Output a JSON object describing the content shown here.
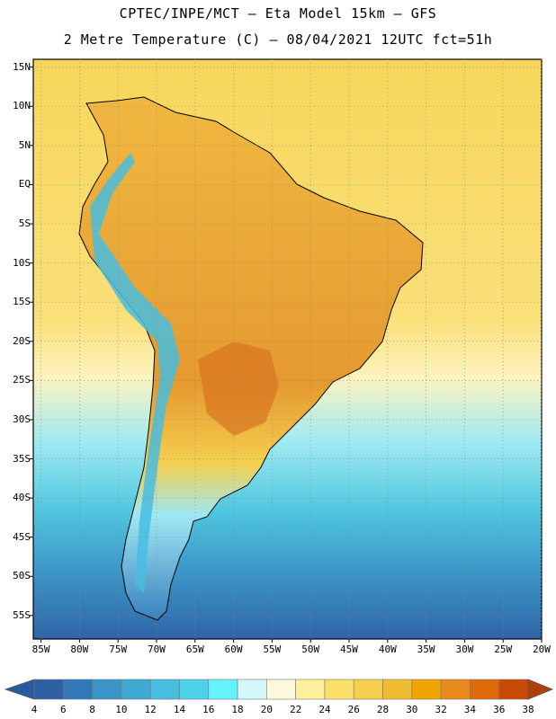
{
  "title": {
    "line1": "CPTEC/INPE/MCT –  Eta Model 15km – GFS",
    "line2": "2 Metre Temperature (C) – 08/04/2021 12UTC fct=51h"
  },
  "map": {
    "lat_labels": [
      "15N",
      "10N",
      "5N",
      "EQ",
      "5S",
      "10S",
      "15S",
      "20S",
      "25S",
      "30S",
      "35S",
      "40S",
      "45S",
      "50S",
      "55S"
    ],
    "lat_values": [
      15,
      10,
      5,
      0,
      -5,
      -10,
      -15,
      -20,
      -25,
      -30,
      -35,
      -40,
      -45,
      -50,
      -55
    ],
    "lon_labels": [
      "85W",
      "80W",
      "75W",
      "70W",
      "65W",
      "60W",
      "55W",
      "50W",
      "45W",
      "40W",
      "35W",
      "30W",
      "25W",
      "20W"
    ],
    "lon_values": [
      -85,
      -80,
      -75,
      -70,
      -65,
      -60,
      -55,
      -50,
      -45,
      -40,
      -35,
      -30,
      -25,
      -20
    ],
    "lon_range": [
      -86,
      -20
    ],
    "lat_range": [
      -58,
      16
    ],
    "ocean_color": "#f4d35a",
    "land_color": "#e8a63a"
  },
  "colorbar": {
    "labels": [
      "4",
      "6",
      "8",
      "10",
      "12",
      "14",
      "16",
      "18",
      "20",
      "22",
      "24",
      "26",
      "28",
      "30",
      "32",
      "34",
      "36",
      "38"
    ],
    "colors": [
      "#2f5fa3",
      "#3278b8",
      "#3a94c8",
      "#40a9d3",
      "#48bde0",
      "#4ed2ea",
      "#66f2fb",
      "#d4f7fb",
      "#fdf8dc",
      "#fdf09a",
      "#fbe06a",
      "#f5cf4e",
      "#efbd32",
      "#f0a400",
      "#e88b1c",
      "#de6a0c",
      "#c84a04"
    ],
    "low_end_color": "#2a5a9e",
    "high_end_color": "#b0400a"
  }
}
